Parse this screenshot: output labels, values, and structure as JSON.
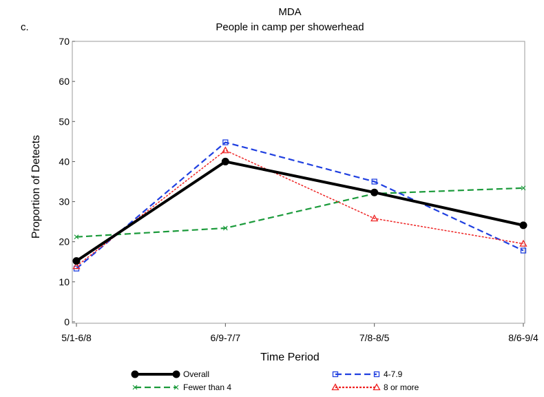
{
  "panel_label": "c.",
  "chart_data": {
    "type": "line",
    "title": "MDA",
    "subtitle": "People in camp per showerhead",
    "xlabel": "Time Period",
    "ylabel": "Proportion of Detects",
    "categories": [
      "5/1-6/8",
      "6/9-7/7",
      "7/8-8/5",
      "8/6-9/4"
    ],
    "ylim": [
      0,
      70
    ],
    "yticks": [
      0,
      10,
      20,
      30,
      40,
      50,
      60,
      70
    ],
    "grid": false,
    "legend_position": "bottom",
    "series": [
      {
        "name": "Overall",
        "values": [
          15.2,
          40.0,
          32.3,
          24.1
        ],
        "color": "#000000",
        "style": "solid",
        "marker": "filled-circle"
      },
      {
        "name": "Fewer than 4",
        "values": [
          21.2,
          23.4,
          32.0,
          33.4
        ],
        "color": "#1a9a3a",
        "style": "dashed",
        "marker": "x"
      },
      {
        "name": "4-7.9",
        "values": [
          13.3,
          44.8,
          35.0,
          17.8
        ],
        "color": "#1f3fe0",
        "style": "dashed",
        "marker": "open-square"
      },
      {
        "name": "8 or more",
        "values": [
          13.9,
          42.8,
          25.8,
          19.5
        ],
        "color": "#ee2222",
        "style": "dotted",
        "marker": "open-triangle"
      }
    ]
  }
}
